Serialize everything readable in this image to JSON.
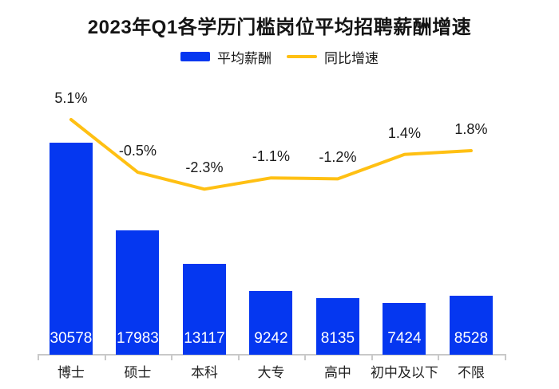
{
  "title": "2023年Q1各学历门槛岗位平均招聘薪酬增速",
  "legend": {
    "salary_label": "平均薪酬",
    "growth_label": "同比增速"
  },
  "colors": {
    "bar_blue": "#0537f0",
    "line_yellow": "#ffc013",
    "axis_gray": "#c9c9c9",
    "text_dark": "#1a1a1a",
    "bar_value_text": "#ffffff"
  },
  "chart_data": {
    "type": "combo-bar-line",
    "title": "2023年Q1各学历门槛岗位平均招聘薪酬增速",
    "categories": [
      "博士",
      "硕士",
      "本科",
      "大专",
      "高中",
      "初中及以下",
      "不限"
    ],
    "series": [
      {
        "name": "平均薪酬",
        "type": "bar",
        "values": [
          30578,
          17983,
          13117,
          9242,
          8135,
          7424,
          8528
        ],
        "value_labels": [
          "30578",
          "17983",
          "13117",
          "9242",
          "8135",
          "7424",
          "8528"
        ],
        "value_label_position": "inside-bottom"
      },
      {
        "name": "同比增速",
        "type": "line",
        "values": [
          5.1,
          -0.5,
          -2.3,
          -1.1,
          -1.2,
          1.4,
          1.8
        ],
        "value_labels": [
          "5.1%",
          "-0.5%",
          "-2.3%",
          "-1.1%",
          "-1.2%",
          "1.4%",
          "1.8%"
        ],
        "value_label_position": "above-point"
      }
    ],
    "legend_position": "top-center",
    "grid": false,
    "y_axis_visible": false,
    "x_axis": {
      "visible": true,
      "ticks_between_categories": true
    }
  }
}
